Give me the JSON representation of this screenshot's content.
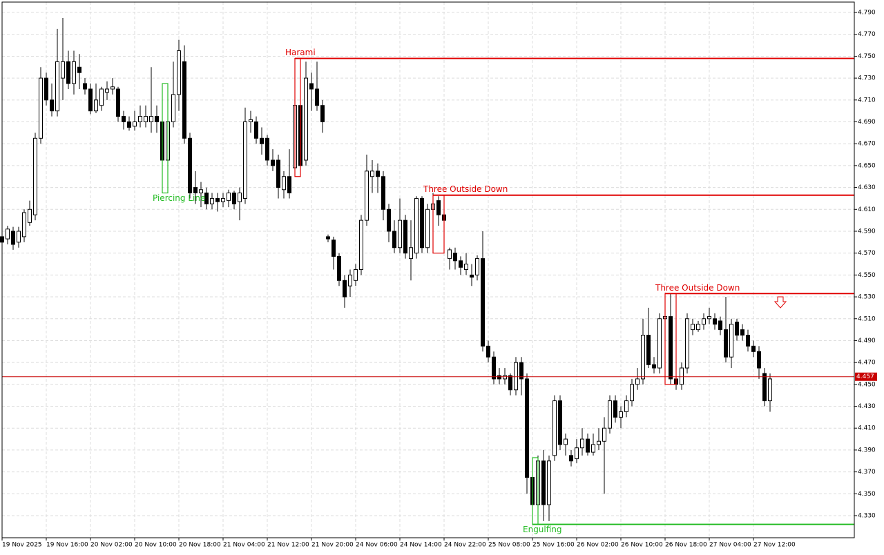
{
  "chart_data": {
    "type": "candlestick",
    "open": [
      4.585,
      4.583,
      4.59,
      4.58,
      4.585,
      4.598,
      4.605,
      4.675,
      4.73,
      4.71,
      4.7,
      4.73,
      4.745,
      4.725,
      4.74,
      4.725,
      4.72,
      4.7,
      4.705,
      4.717,
      4.72,
      4.72,
      4.695,
      4.69,
      4.686,
      4.69,
      4.69,
      4.69,
      4.695,
      4.69,
      4.655,
      4.69,
      4.715,
      4.745,
      4.675,
      4.63,
      4.625,
      4.625,
      4.615,
      4.62,
      4.617,
      4.618,
      4.625,
      4.617,
      4.62,
      4.69,
      4.69,
      4.675,
      4.675,
      4.655,
      4.655,
      4.628,
      4.64,
      4.648,
      4.705,
      4.655,
      4.725,
      4.72,
      4.705,
      4.585,
      4.582,
      4.567,
      4.545,
      4.54,
      4.545,
      4.555,
      4.6,
      4.64,
      4.645,
      4.64,
      4.61,
      4.59,
      4.575,
      4.6,
      4.565,
      4.57,
      4.62,
      4.575,
      4.61,
      4.618,
      4.605,
      4.565,
      4.57,
      4.563,
      4.555,
      4.55,
      4.55,
      4.565,
      4.485,
      4.475,
      4.458,
      4.455,
      4.458,
      4.445,
      4.47,
      4.455,
      4.365,
      4.34,
      4.38,
      4.34,
      4.385,
      4.435,
      4.395,
      4.385,
      4.382,
      4.392,
      4.4,
      4.388,
      4.395,
      4.398,
      4.41,
      4.435,
      4.42,
      4.425,
      4.435,
      4.45,
      4.455,
      4.495,
      4.468,
      4.465,
      4.51,
      4.512,
      4.455,
      4.45,
      4.465,
      4.5,
      4.5,
      4.505,
      4.51,
      4.51,
      4.508,
      4.5,
      4.475,
      4.507,
      4.5,
      4.495,
      4.485,
      4.48,
      4.46,
      4.435
    ],
    "high": [
      4.59,
      4.595,
      4.594,
      4.594,
      4.61,
      4.618,
      4.68,
      4.74,
      4.735,
      4.725,
      4.775,
      4.785,
      4.755,
      4.755,
      4.752,
      4.73,
      4.725,
      4.725,
      4.722,
      4.727,
      4.73,
      4.722,
      4.7,
      4.695,
      4.7,
      4.705,
      4.705,
      4.74,
      4.705,
      4.7,
      4.725,
      4.745,
      4.765,
      4.76,
      4.68,
      4.645,
      4.635,
      4.63,
      4.625,
      4.625,
      4.625,
      4.628,
      4.627,
      4.63,
      4.703,
      4.7,
      4.695,
      4.685,
      4.678,
      4.665,
      4.66,
      4.645,
      4.665,
      4.735,
      4.708,
      4.745,
      4.735,
      4.745,
      4.71,
      4.587,
      4.585,
      4.57,
      4.55,
      4.555,
      4.56,
      4.605,
      4.66,
      4.655,
      4.652,
      4.645,
      4.615,
      4.6,
      4.62,
      4.605,
      4.6,
      4.622,
      4.622,
      4.615,
      4.625,
      4.622,
      4.612,
      4.575,
      4.575,
      4.567,
      4.57,
      4.56,
      4.568,
      4.59,
      4.49,
      4.48,
      4.465,
      4.465,
      4.46,
      4.475,
      4.475,
      4.46,
      4.375,
      4.385,
      4.39,
      4.385,
      4.44,
      4.44,
      4.405,
      4.39,
      4.4,
      4.41,
      4.405,
      4.405,
      4.41,
      4.42,
      4.44,
      4.44,
      4.43,
      4.44,
      4.455,
      4.465,
      4.51,
      4.52,
      4.475,
      4.515,
      4.52,
      4.533,
      4.47,
      4.47,
      4.515,
      4.51,
      4.508,
      4.515,
      4.52,
      4.515,
      4.512,
      4.53,
      4.51,
      4.51,
      4.505,
      4.5,
      4.49,
      4.485,
      4.465,
      4.46
    ],
    "low": [
      4.575,
      4.578,
      4.573,
      4.575,
      4.58,
      4.595,
      4.6,
      4.67,
      4.705,
      4.695,
      4.695,
      4.71,
      4.72,
      4.715,
      4.72,
      4.715,
      4.697,
      4.698,
      4.7,
      4.71,
      4.715,
      4.69,
      4.683,
      4.682,
      4.682,
      4.685,
      4.685,
      4.68,
      4.68,
      4.625,
      4.65,
      4.685,
      4.7,
      4.67,
      4.62,
      4.615,
      4.612,
      4.61,
      4.61,
      4.608,
      4.612,
      4.612,
      4.61,
      4.6,
      4.615,
      4.68,
      4.67,
      4.66,
      4.65,
      4.645,
      4.62,
      4.62,
      4.62,
      4.64,
      4.643,
      4.65,
      4.7,
      4.7,
      4.68,
      4.58,
      4.555,
      4.54,
      4.52,
      4.53,
      4.54,
      4.55,
      4.595,
      4.625,
      4.625,
      4.6,
      4.58,
      4.57,
      4.57,
      4.565,
      4.545,
      4.565,
      4.57,
      4.57,
      4.605,
      4.595,
      4.595,
      4.555,
      4.555,
      4.55,
      4.55,
      4.54,
      4.545,
      4.48,
      4.47,
      4.45,
      4.45,
      4.45,
      4.44,
      4.44,
      4.44,
      4.35,
      4.33,
      4.335,
      4.325,
      4.325,
      4.38,
      4.39,
      4.385,
      4.375,
      4.378,
      4.385,
      4.385,
      4.385,
      4.39,
      4.35,
      4.405,
      4.415,
      4.41,
      4.42,
      4.43,
      4.445,
      4.45,
      4.465,
      4.46,
      4.46,
      4.455,
      4.45,
      4.445,
      4.445,
      4.46,
      4.495,
      4.498,
      4.5,
      4.505,
      4.5,
      4.495,
      4.47,
      4.465,
      4.49,
      4.49,
      4.48,
      4.475,
      4.455,
      4.43,
      4.425
    ],
    "close": [
      4.58,
      4.592,
      4.578,
      4.59,
      4.607,
      4.61,
      4.675,
      4.73,
      4.71,
      4.7,
      4.745,
      4.745,
      4.725,
      4.745,
      4.735,
      4.72,
      4.7,
      4.71,
      4.72,
      4.72,
      4.722,
      4.695,
      4.69,
      4.685,
      4.69,
      4.695,
      4.695,
      4.695,
      4.69,
      4.655,
      4.69,
      4.715,
      4.755,
      4.675,
      4.625,
      4.625,
      4.628,
      4.615,
      4.62,
      4.617,
      4.62,
      4.625,
      4.615,
      4.625,
      4.69,
      4.692,
      4.675,
      4.67,
      4.655,
      4.65,
      4.63,
      4.64,
      4.625,
      4.705,
      4.65,
      4.73,
      4.72,
      4.705,
      4.69,
      4.583,
      4.567,
      4.545,
      4.53,
      4.55,
      4.555,
      4.6,
      4.645,
      4.645,
      4.64,
      4.61,
      4.59,
      4.575,
      4.6,
      4.57,
      4.575,
      4.62,
      4.575,
      4.61,
      4.615,
      4.605,
      4.6,
      4.573,
      4.563,
      4.557,
      4.56,
      4.548,
      4.565,
      4.485,
      4.475,
      4.455,
      4.455,
      4.458,
      4.445,
      4.47,
      4.455,
      4.365,
      4.34,
      4.38,
      4.34,
      4.38,
      4.435,
      4.395,
      4.4,
      4.38,
      4.392,
      4.4,
      4.388,
      4.395,
      4.398,
      4.41,
      4.435,
      4.42,
      4.425,
      4.435,
      4.45,
      4.455,
      4.495,
      4.468,
      4.465,
      4.51,
      4.512,
      4.455,
      4.45,
      4.465,
      4.51,
      4.505,
      4.505,
      4.51,
      4.512,
      4.505,
      4.5,
      4.475,
      4.505,
      4.495,
      4.495,
      4.485,
      4.48,
      4.465,
      4.435,
      4.455
    ],
    "xticks": [
      {
        "value": 0,
        "label": "19 Nov 2025"
      },
      {
        "value": 8,
        "label": "19 Nov 16:00"
      },
      {
        "value": 16,
        "label": "20 Nov 02:00"
      },
      {
        "value": 24,
        "label": "20 Nov 10:00"
      },
      {
        "value": 32,
        "label": "20 Nov 18:00"
      },
      {
        "value": 40,
        "label": "21 Nov 04:00"
      },
      {
        "value": 48,
        "label": "21 Nov 12:00"
      },
      {
        "value": 56,
        "label": "21 Nov 20:00"
      },
      {
        "value": 64,
        "label": "24 Nov 06:00"
      },
      {
        "value": 72,
        "label": "24 Nov 14:00"
      },
      {
        "value": 80,
        "label": "24 Nov 22:00"
      },
      {
        "value": 88,
        "label": "25 Nov 08:00"
      },
      {
        "value": 96,
        "label": "25 Nov 16:00"
      },
      {
        "value": 104,
        "label": "26 Nov 02:00"
      },
      {
        "value": 112,
        "label": "26 Nov 10:00"
      },
      {
        "value": 120,
        "label": "26 Nov 18:00"
      },
      {
        "value": 128,
        "label": "27 Nov 04:00"
      },
      {
        "value": 136,
        "label": "27 Nov 12:00"
      }
    ],
    "ylim": [
      4.3098,
      4.7995
    ],
    "yticks": [
      {
        "value": 4.33,
        "label": "4.330"
      },
      {
        "value": 4.35,
        "label": "4.350"
      },
      {
        "value": 4.37,
        "label": "4.370"
      },
      {
        "value": 4.39,
        "label": "4.390"
      },
      {
        "value": 4.41,
        "label": "4.410"
      },
      {
        "value": 4.43,
        "label": "4.430"
      },
      {
        "value": 4.45,
        "label": "4.450"
      },
      {
        "value": 4.47,
        "label": "4.470"
      },
      {
        "value": 4.49,
        "label": "4.490"
      },
      {
        "value": 4.51,
        "label": "4.510"
      },
      {
        "value": 4.53,
        "label": "4.530"
      },
      {
        "value": 4.55,
        "label": "4.550"
      },
      {
        "value": 4.57,
        "label": "4.570"
      },
      {
        "value": 4.59,
        "label": "4.590"
      },
      {
        "value": 4.61,
        "label": "4.610"
      },
      {
        "value": 4.63,
        "label": "4.630"
      },
      {
        "value": 4.65,
        "label": "4.650"
      },
      {
        "value": 4.67,
        "label": "4.670"
      },
      {
        "value": 4.69,
        "label": "4.690"
      },
      {
        "value": 4.71,
        "label": "4.710"
      },
      {
        "value": 4.73,
        "label": "4.730"
      },
      {
        "value": 4.75,
        "label": "4.750"
      },
      {
        "value": 4.77,
        "label": "4.770"
      },
      {
        "value": 4.79,
        "label": "4.790"
      }
    ],
    "grid": true,
    "price_line": {
      "value": 4.457,
      "label": "4.457",
      "color": "#c80000"
    },
    "patterns": [
      {
        "label": "Harami",
        "color": "#e00000",
        "from": 53,
        "to": 54,
        "top": 4.748,
        "bottom": 4.64,
        "level": 4.748
      },
      {
        "label": "Three Outside Down",
        "color": "#e00000",
        "from": 78,
        "to": 80,
        "top": 4.623,
        "bottom": 4.57,
        "level": 4.623
      },
      {
        "label": "Three Outside Down",
        "color": "#e00000",
        "from": 120,
        "to": 122,
        "top": 4.533,
        "bottom": 4.45,
        "level": 4.533
      },
      {
        "label": "Piercing Line",
        "color": "#22bb22",
        "from": 29,
        "to": 30,
        "top": 4.725,
        "bottom": 4.625
      },
      {
        "label": "Engulfing",
        "color": "#22bb22",
        "from": 96,
        "to": 97,
        "top": 4.383,
        "bottom": 4.322,
        "level": 4.322
      }
    ]
  }
}
